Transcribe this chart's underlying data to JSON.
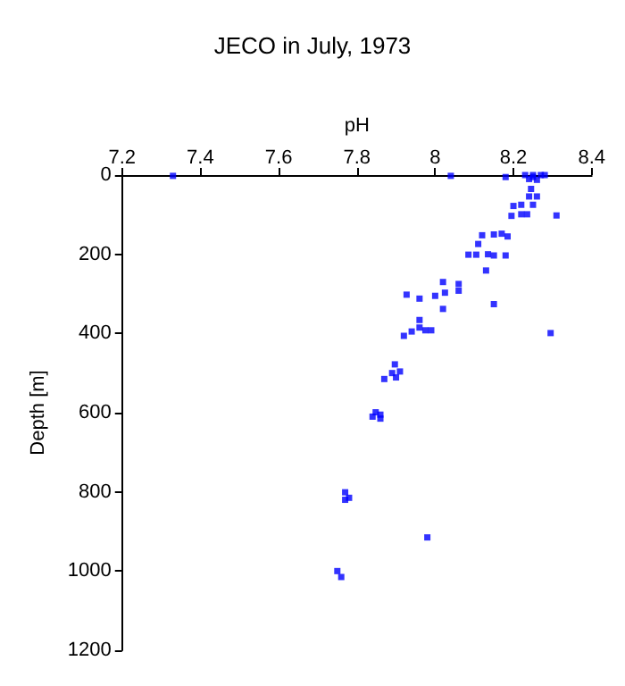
{
  "chart_data": {
    "type": "scatter",
    "title": "JECO in July, 1973",
    "xlabel": "pH",
    "ylabel": "Depth [m]",
    "xlim": [
      7.2,
      8.4
    ],
    "xticks": [
      7.2,
      7.4,
      7.6,
      7.8,
      8,
      8.2,
      8.4
    ],
    "ylim": [
      1200,
      0
    ],
    "yticks": [
      0,
      200,
      400,
      600,
      800,
      1000,
      1200
    ],
    "grid": false,
    "marker": "square",
    "series": [
      {
        "color": "#0000ff",
        "x": [
          7.33,
          8.04,
          8.18,
          8.23,
          8.25,
          8.27,
          8.28,
          8.25,
          8.24,
          8.26,
          8.245,
          8.24,
          8.26,
          8.2,
          8.22,
          8.25,
          8.22,
          8.195,
          8.235,
          8.31,
          8.12,
          8.15,
          8.17,
          8.185,
          8.11,
          8.085,
          8.105,
          8.135,
          8.15,
          8.18,
          8.13,
          8.15,
          8.02,
          8.06,
          8.06,
          8.025,
          8,
          7.927,
          7.96,
          8.02,
          7.96,
          7.96,
          7.94,
          7.92,
          7.975,
          7.99,
          8.295,
          7.897,
          7.89,
          7.91,
          7.87,
          7.9,
          7.848,
          7.84,
          7.86,
          7.86,
          7.77,
          7.78,
          7.77,
          7.98,
          7.75,
          7.76
        ],
        "values": [
          2,
          2,
          5,
          0,
          0,
          0,
          0,
          5,
          10,
          12,
          35,
          54,
          54,
          78,
          75,
          75,
          99,
          103,
          99,
          102,
          152,
          150,
          148,
          155,
          174,
          201,
          201,
          200,
          203,
          203,
          241,
          326,
          270,
          275,
          292,
          297,
          305,
          302,
          312,
          338,
          366,
          385,
          395,
          406,
          392,
          392,
          399,
          478,
          500,
          496,
          515,
          511,
          599,
          610,
          605,
          615,
          801,
          815,
          820,
          915,
          1000,
          1015
        ]
      }
    ]
  }
}
